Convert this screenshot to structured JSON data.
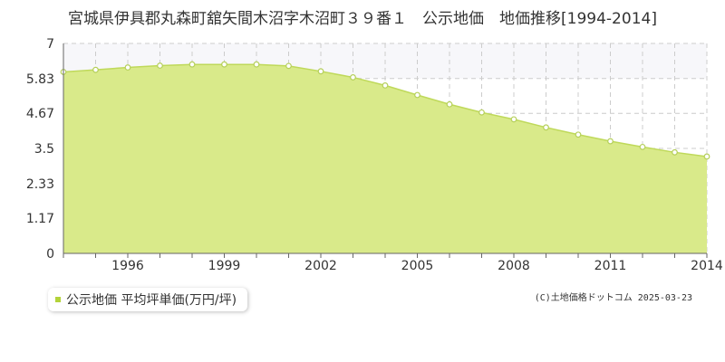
{
  "chart_data": {
    "type": "area",
    "title": "宮城県伊具郡丸森町舘矢間木沼字木沼町３９番１　公示地価　地価推移[1994-2014]",
    "xlabel": "",
    "ylabel": "",
    "ylim": [
      0,
      7
    ],
    "xlim": [
      1994,
      2014
    ],
    "y_ticks": [
      "0",
      "1.17",
      "2.33",
      "3.5",
      "4.67",
      "5.83",
      "7"
    ],
    "x_ticks": [
      "1996",
      "1999",
      "2002",
      "2005",
      "2008",
      "2011",
      "2014"
    ],
    "x_tick_values": [
      1996,
      1999,
      2002,
      2005,
      2008,
      2011,
      2014
    ],
    "y_tick_values": [
      0,
      1.17,
      2.33,
      3.5,
      4.67,
      5.83,
      7
    ],
    "grid": true,
    "legend_position": "bottom-left",
    "series": [
      {
        "name": "公示地価 平均坪単価(万円/坪)",
        "x": [
          1994,
          1995,
          1996,
          1997,
          1998,
          1999,
          2000,
          2001,
          2002,
          2003,
          2004,
          2005,
          2006,
          2007,
          2008,
          2009,
          2010,
          2011,
          2012,
          2013,
          2014
        ],
        "values": [
          6.05,
          6.12,
          6.2,
          6.26,
          6.3,
          6.3,
          6.3,
          6.25,
          6.07,
          5.87,
          5.6,
          5.28,
          4.97,
          4.7,
          4.47,
          4.2,
          3.96,
          3.74,
          3.55,
          3.37,
          3.23
        ]
      }
    ]
  },
  "legend": {
    "label": "公示地価 平均坪単価(万円/坪)"
  },
  "credit": "(C)土地価格ドットコム 2025-03-23",
  "colors": {
    "area_fill": "#d9ea8a",
    "line": "#bfd95a",
    "marker_fill": "#ffffff",
    "marker_stroke": "#b5cf5a",
    "grid": "#cccccc",
    "legend_swatch": "#b3d33a",
    "upper_band": "#f7f7fa"
  }
}
